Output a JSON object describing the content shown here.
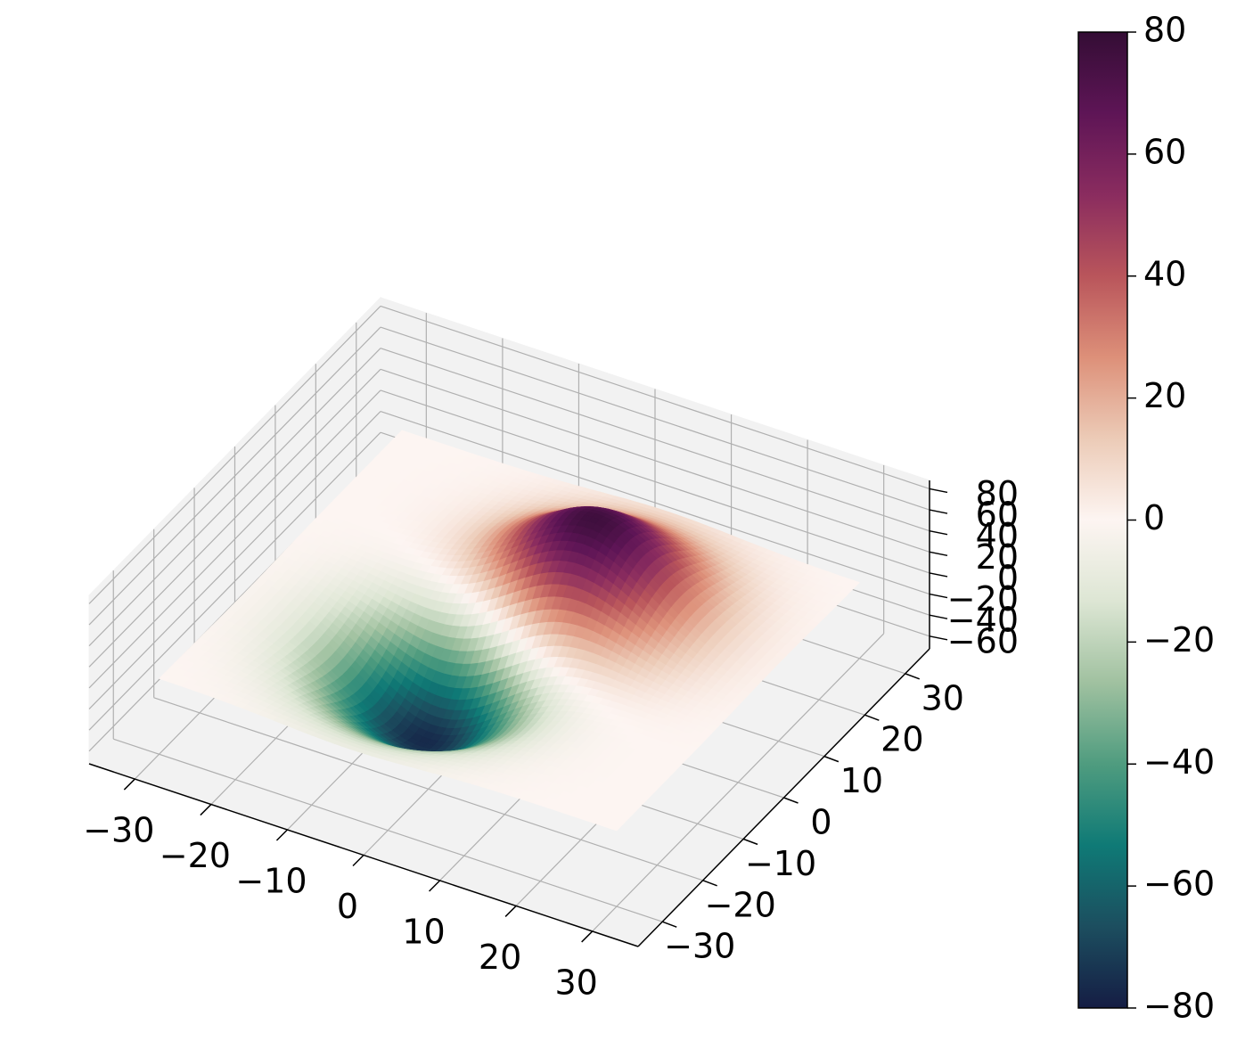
{
  "chart_data": {
    "type": "surface",
    "title": "",
    "xlabel": "",
    "ylabel": "",
    "zlabel": "",
    "xlim": [
      -36,
      36
    ],
    "ylim": [
      -36,
      36
    ],
    "zlim": [
      -72,
      88
    ],
    "x_ticks": [
      "−30",
      "−20",
      "−10",
      "0",
      "10",
      "20",
      "30"
    ],
    "x_tick_values": [
      -30,
      -20,
      -10,
      0,
      10,
      20,
      30
    ],
    "y_ticks": [
      "−30",
      "−20",
      "−10",
      "0",
      "10",
      "20",
      "30"
    ],
    "y_tick_values": [
      -30,
      -20,
      -10,
      0,
      10,
      20,
      30
    ],
    "z_ticks": [
      "−60",
      "−40",
      "−20",
      "0",
      "20",
      "40",
      "60",
      "80"
    ],
    "z_tick_values": [
      -60,
      -40,
      -20,
      0,
      20,
      40,
      60,
      80
    ],
    "surface": {
      "function": "sum of two gaussian bumps",
      "peaks": [
        {
          "x": 5,
          "y": 10,
          "amplitude": 80,
          "sigma": 9
        },
        {
          "x": -5,
          "y": -10,
          "amplitude": -80,
          "sigma": 9
        }
      ],
      "grid_range": [
        -30,
        30
      ],
      "grid_step": 1
    },
    "colormap": {
      "name": "curl",
      "vmin": -80,
      "vmax": 80,
      "stops": [
        "#151d44",
        "#1c4e5f",
        "#0f7a76",
        "#4f9c7f",
        "#a0c1a0",
        "#dde6d4",
        "#fdf5f2",
        "#eccbb7",
        "#dd9079",
        "#b9555b",
        "#8a2c5f",
        "#5e1556",
        "#340d35"
      ]
    },
    "colorbar": {
      "ticks": [
        "−80",
        "−60",
        "−40",
        "−20",
        "0",
        "20",
        "40",
        "60",
        "80"
      ],
      "tick_values": [
        -80,
        -60,
        -40,
        -20,
        0,
        20,
        40,
        60,
        80
      ]
    },
    "grid": true,
    "pane_color": "#f2f2f2",
    "grid_color": "#b0b0b0"
  }
}
